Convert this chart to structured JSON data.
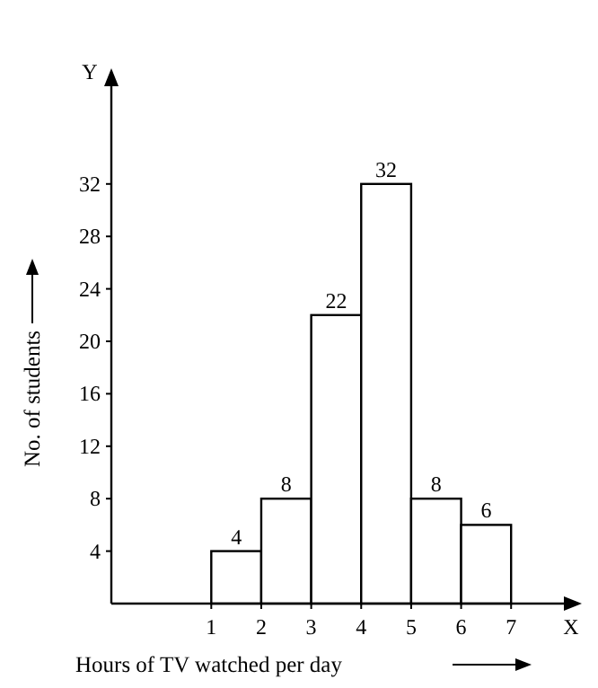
{
  "chart_data": {
    "type": "histogram",
    "xlabel": "Hours of TV watched per day",
    "ylabel": "No. of students",
    "bins": [
      1,
      2,
      3,
      4,
      5,
      6,
      7
    ],
    "values": [
      4,
      8,
      22,
      32,
      8,
      6
    ],
    "color": "#ffffff",
    "xlim": [
      -1,
      8.2
    ],
    "xticks": [
      1,
      2,
      3,
      4,
      5,
      6,
      7
    ],
    "ylim": [
      0,
      40
    ],
    "yticks": [
      4,
      8,
      12,
      16,
      20,
      24,
      28,
      32
    ],
    "data_labels": true,
    "grid": false,
    "annotations": [
      "Y",
      "X"
    ]
  }
}
